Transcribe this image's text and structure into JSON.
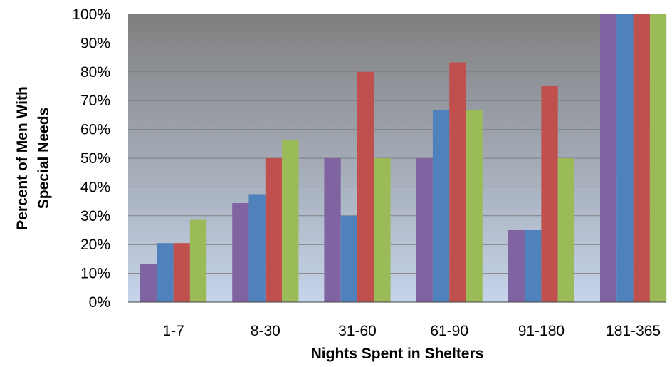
{
  "chart_data": {
    "type": "bar",
    "title": "",
    "xlabel": "Nights Spent in Shelters",
    "ylabel_lines": [
      "Percent of Men With",
      "Special Needs"
    ],
    "categories": [
      "1-7",
      "8-30",
      "31-60",
      "61-90",
      "91-180",
      "181-365"
    ],
    "ylim": [
      0,
      100
    ],
    "y_ticks": [
      0,
      10,
      20,
      30,
      40,
      50,
      60,
      70,
      80,
      90,
      100
    ],
    "y_tick_labels": [
      "0%",
      "10%",
      "20%",
      "30%",
      "40%",
      "50%",
      "60%",
      "70%",
      "80%",
      "90%",
      "100%"
    ],
    "grid": true,
    "legend": "none",
    "series": [
      {
        "color": "#8064A2",
        "values": [
          13.3,
          34.4,
          50,
          50,
          25,
          100
        ]
      },
      {
        "color": "#4F81BD",
        "values": [
          20.5,
          37.5,
          30,
          66.7,
          25,
          100
        ]
      },
      {
        "color": "#C0504D",
        "values": [
          20.5,
          50,
          80,
          83.3,
          75,
          100
        ]
      },
      {
        "color": "#9BBB59",
        "values": [
          28.6,
          56.3,
          50,
          66.7,
          50,
          100
        ]
      }
    ],
    "plot_gradient": [
      "#7F7F7F",
      "#C6D4EA"
    ]
  }
}
